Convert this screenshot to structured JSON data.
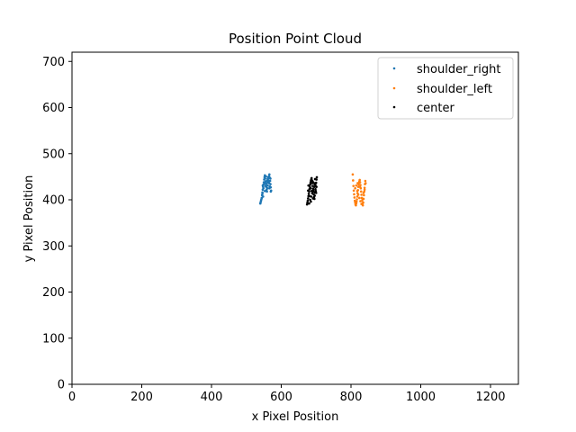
{
  "chart_data": {
    "type": "scatter",
    "title": "Position Point Cloud",
    "xlabel": "x Pixel Position",
    "ylabel": "y Pixel Position",
    "xlim": [
      0,
      1280
    ],
    "ylim": [
      0,
      720
    ],
    "xticks": [
      0,
      200,
      400,
      600,
      800,
      1000,
      1200
    ],
    "yticks": [
      0,
      100,
      200,
      300,
      400,
      500,
      600,
      700
    ],
    "grid": false,
    "legend_position": "top-right",
    "series": [
      {
        "name": "shoulder_right",
        "color": "#1f77b4",
        "marker": "point",
        "points": [
          [
            540,
            392
          ],
          [
            542,
            398
          ],
          [
            544,
            404
          ],
          [
            545,
            410
          ],
          [
            546,
            416
          ],
          [
            547,
            422
          ],
          [
            548,
            428
          ],
          [
            549,
            433
          ],
          [
            550,
            438
          ],
          [
            551,
            444
          ],
          [
            552,
            449
          ],
          [
            553,
            453
          ],
          [
            554,
            446
          ],
          [
            555,
            440
          ],
          [
            556,
            434
          ],
          [
            557,
            428
          ],
          [
            558,
            422
          ],
          [
            559,
            418
          ],
          [
            560,
            425
          ],
          [
            561,
            431
          ],
          [
            562,
            437
          ],
          [
            563,
            442
          ],
          [
            564,
            447
          ],
          [
            565,
            451
          ],
          [
            566,
            455
          ],
          [
            567,
            448
          ],
          [
            568,
            441
          ],
          [
            569,
            434
          ],
          [
            570,
            427
          ],
          [
            571,
            420
          ],
          [
            543,
            401
          ],
          [
            546,
            413
          ],
          [
            549,
            425
          ],
          [
            552,
            437
          ],
          [
            555,
            430
          ],
          [
            558,
            436
          ],
          [
            561,
            445
          ],
          [
            564,
            438
          ],
          [
            567,
            429
          ],
          [
            570,
            418
          ],
          [
            547,
            431
          ],
          [
            553,
            419
          ],
          [
            559,
            441
          ],
          [
            565,
            436
          ],
          [
            556,
            451
          ],
          [
            541,
            395
          ],
          [
            548,
            407
          ],
          [
            562,
            449
          ],
          [
            566,
            425
          ],
          [
            569,
            446
          ]
        ]
      },
      {
        "name": "shoulder_left",
        "color": "#ff7f0e",
        "marker": "point",
        "points": [
          [
            805,
            455
          ],
          [
            806,
            442
          ],
          [
            807,
            430
          ],
          [
            808,
            420
          ],
          [
            809,
            412
          ],
          [
            810,
            405
          ],
          [
            811,
            398
          ],
          [
            812,
            394
          ],
          [
            813,
            390
          ],
          [
            814,
            388
          ],
          [
            815,
            392
          ],
          [
            816,
            396
          ],
          [
            817,
            401
          ],
          [
            818,
            407
          ],
          [
            819,
            414
          ],
          [
            820,
            421
          ],
          [
            821,
            428
          ],
          [
            822,
            433
          ],
          [
            823,
            437
          ],
          [
            824,
            440
          ],
          [
            825,
            443
          ],
          [
            826,
            438
          ],
          [
            827,
            432
          ],
          [
            828,
            425
          ],
          [
            829,
            418
          ],
          [
            830,
            411
          ],
          [
            831,
            404
          ],
          [
            832,
            398
          ],
          [
            833,
            392
          ],
          [
            834,
            388
          ],
          [
            835,
            394
          ],
          [
            836,
            402
          ],
          [
            837,
            410
          ],
          [
            838,
            418
          ],
          [
            839,
            426
          ],
          [
            840,
            434
          ],
          [
            841,
            441
          ],
          [
            842,
            436
          ],
          [
            812,
            425
          ],
          [
            815,
            431
          ],
          [
            818,
            419
          ],
          [
            821,
            411
          ],
          [
            824,
            404
          ],
          [
            827,
            397
          ],
          [
            830,
            391
          ],
          [
            833,
            402
          ],
          [
            836,
            415
          ],
          [
            839,
            422
          ],
          [
            826,
            428
          ],
          [
            819,
            436
          ]
        ]
      },
      {
        "name": "center",
        "color": "#000000",
        "marker": "point",
        "points": [
          [
            674,
            390
          ],
          [
            675,
            394
          ],
          [
            676,
            398
          ],
          [
            677,
            403
          ],
          [
            678,
            408
          ],
          [
            679,
            413
          ],
          [
            680,
            418
          ],
          [
            681,
            423
          ],
          [
            682,
            428
          ],
          [
            683,
            433
          ],
          [
            684,
            437
          ],
          [
            685,
            441
          ],
          [
            686,
            444
          ],
          [
            687,
            447
          ],
          [
            688,
            442
          ],
          [
            689,
            436
          ],
          [
            690,
            430
          ],
          [
            691,
            424
          ],
          [
            692,
            418
          ],
          [
            693,
            412
          ],
          [
            694,
            406
          ],
          [
            695,
            402
          ],
          [
            696,
            409
          ],
          [
            697,
            416
          ],
          [
            698,
            423
          ],
          [
            699,
            430
          ],
          [
            700,
            437
          ],
          [
            701,
            444
          ],
          [
            702,
            449
          ],
          [
            680,
            392
          ],
          [
            683,
            400
          ],
          [
            686,
            407
          ],
          [
            689,
            414
          ],
          [
            692,
            421
          ],
          [
            695,
            428
          ],
          [
            698,
            435
          ],
          [
            701,
            428
          ],
          [
            678,
            431
          ],
          [
            684,
            425
          ],
          [
            690,
            440
          ],
          [
            696,
            433
          ],
          [
            699,
            419
          ],
          [
            687,
            419
          ],
          [
            693,
            437
          ],
          [
            677,
            420
          ],
          [
            681,
            408
          ],
          [
            685,
            396
          ],
          [
            691,
            403
          ],
          [
            697,
            445
          ],
          [
            700,
            415
          ]
        ]
      }
    ]
  }
}
